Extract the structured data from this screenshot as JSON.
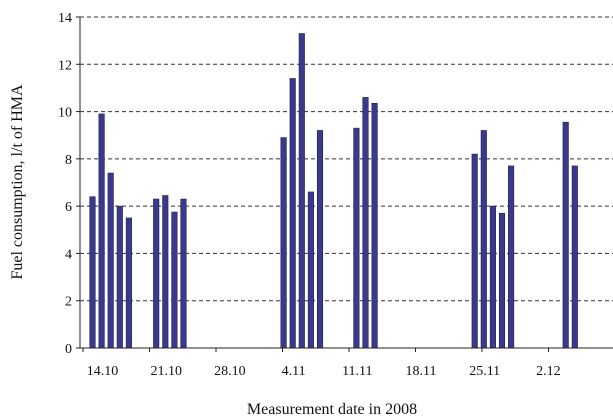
{
  "chart_data": {
    "type": "bar",
    "title": "",
    "xlabel": "Measurement date in 2008",
    "ylabel": "Fuel consumption, l/t of HMA",
    "ylim": [
      0,
      14
    ],
    "yticks": [
      0,
      2,
      4,
      6,
      8,
      10,
      12,
      14
    ],
    "grid": "horizontal-dashed",
    "x_tick_labels": [
      "14.10",
      "21.10",
      "28.10",
      "4.11",
      "11.11",
      "18.11",
      "25.11",
      "2.12"
    ],
    "x_tick_days": [
      0,
      7,
      14,
      21,
      28,
      35,
      42,
      49
    ],
    "bar_color": "#3a3a8c",
    "bars": [
      {
        "day": 0,
        "value": 6.4
      },
      {
        "day": 1,
        "value": 9.9
      },
      {
        "day": 2,
        "value": 7.4
      },
      {
        "day": 3,
        "value": 6.0
      },
      {
        "day": 4,
        "value": 5.5
      },
      {
        "day": 7,
        "value": 6.3
      },
      {
        "day": 8,
        "value": 6.45
      },
      {
        "day": 9,
        "value": 5.75
      },
      {
        "day": 10,
        "value": 6.3
      },
      {
        "day": 21,
        "value": 8.9
      },
      {
        "day": 22,
        "value": 11.4
      },
      {
        "day": 23,
        "value": 13.3
      },
      {
        "day": 24,
        "value": 6.6
      },
      {
        "day": 25,
        "value": 9.2
      },
      {
        "day": 29,
        "value": 9.3
      },
      {
        "day": 30,
        "value": 10.6
      },
      {
        "day": 31,
        "value": 10.35
      },
      {
        "day": 42,
        "value": 8.2
      },
      {
        "day": 43,
        "value": 9.2
      },
      {
        "day": 44,
        "value": 6.0
      },
      {
        "day": 45,
        "value": 5.7
      },
      {
        "day": 46,
        "value": 7.7
      },
      {
        "day": 52,
        "value": 9.55
      },
      {
        "day": 53,
        "value": 7.7
      }
    ]
  }
}
